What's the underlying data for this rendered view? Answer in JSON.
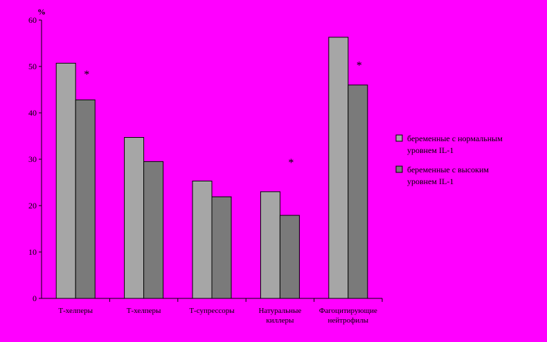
{
  "colors": {
    "background": "#ff00ff",
    "series_normal": "#a6a6a6",
    "series_high": "#7a7a7a",
    "axis": "#000000"
  },
  "chart_data": {
    "type": "bar",
    "ylabel": "%",
    "ylim": [
      0,
      60
    ],
    "yticks": [
      "0",
      "10",
      "20",
      "30",
      "40",
      "50",
      "60"
    ],
    "categories": [
      [
        "Т-хелперы"
      ],
      [
        "Т-хелперы"
      ],
      [
        "Т-супрессоры"
      ],
      [
        "Натуральные",
        "киллеры"
      ],
      [
        "Фагоцитирующие",
        "нейтрофилы"
      ]
    ],
    "series": [
      {
        "name": [
          "беременные с нормальным",
          "уровнем IL-1"
        ],
        "values": [
          50.7,
          34.7,
          25.3,
          23.0,
          56.3
        ]
      },
      {
        "name": [
          "беременные с высоким",
          "уровнем IL-1"
        ],
        "values": [
          42.8,
          29.5,
          21.9,
          17.9,
          46.0
        ]
      }
    ],
    "annotations": [
      {
        "category": 0,
        "text": "*",
        "y": 49
      },
      {
        "category": 3,
        "text": "*",
        "y": 30
      },
      {
        "category": 4,
        "text": "*",
        "y": 51
      }
    ],
    "legend": "right",
    "grid": false
  }
}
